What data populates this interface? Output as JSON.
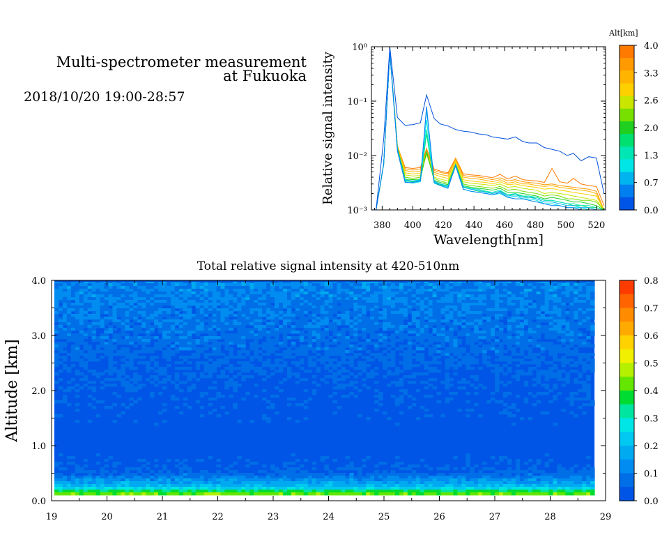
{
  "header": {
    "title_line1": "Multi-spectrometer measurement",
    "title_line2": "at Fukuoka",
    "date_range": "2018/10/20 19:00-28:57"
  },
  "chart_data": [
    {
      "type": "line",
      "xlabel": "Wavelength[nm]",
      "ylabel": "Relative signal intensity",
      "x_ticks": [
        "380",
        "400",
        "420",
        "440",
        "460",
        "480",
        "500",
        "520"
      ],
      "y_ticks": [
        "10⁰",
        "10⁻¹",
        "10⁻²",
        "10⁻³"
      ],
      "y_scale": "log",
      "xlim": [
        373,
        526
      ],
      "ylim": [
        0.001,
        1
      ],
      "grid": false,
      "colorbar": {
        "title": "Alt[km]",
        "ticks": [
          "4.0",
          "3.3",
          "2.6",
          "2.0",
          "1.3",
          "0.7",
          "0.0"
        ],
        "colors": [
          "#ff7a00",
          "#ff9a00",
          "#ffb400",
          "#ffd000",
          "#c8e600",
          "#78e000",
          "#20d020",
          "#00e070",
          "#00e6b4",
          "#00e6e6",
          "#00b4f0",
          "#0080f0",
          "#0055e6"
        ]
      },
      "x": [
        376,
        381,
        385,
        390,
        395,
        400,
        405,
        409,
        414,
        418,
        423,
        428,
        433,
        438,
        443,
        448,
        452,
        457,
        462,
        467,
        472,
        476,
        481,
        486,
        491,
        496,
        501,
        505,
        510,
        515,
        520,
        525
      ],
      "series": [
        {
          "alt": 0.0,
          "color": "#0050dc",
          "values": [
            0.001,
            0.02,
            1.0,
            0.05,
            0.036,
            0.037,
            0.04,
            0.13,
            0.048,
            0.038,
            0.035,
            0.03,
            0.028,
            0.027,
            0.025,
            0.024,
            0.022,
            0.021,
            0.02,
            0.022,
            0.018,
            0.017,
            0.017,
            0.014,
            0.013,
            0.012,
            0.01,
            0.011,
            0.008,
            0.0095,
            0.009,
            0.002
          ]
        },
        {
          "alt": 0.3,
          "color": "#0080f0",
          "values": [
            0.001,
            0.007,
            0.8,
            0.012,
            0.0032,
            0.0032,
            0.0034,
            0.08,
            0.0032,
            0.0028,
            0.0025,
            0.0065,
            0.0024,
            0.0022,
            0.0021,
            0.002,
            0.0019,
            0.0021,
            0.0017,
            0.0016,
            0.0016,
            0.0015,
            0.0014,
            0.0013,
            0.0012,
            0.0012,
            0.0011,
            0.0011,
            0.001,
            0.001,
            0.001,
            0.001
          ]
        },
        {
          "alt": 0.7,
          "color": "#00b4f0",
          "values": [
            0.001,
            0.007,
            0.8,
            0.013,
            0.0035,
            0.0034,
            0.0036,
            0.07,
            0.0034,
            0.003,
            0.0027,
            0.0068,
            0.0026,
            0.0024,
            0.0023,
            0.0021,
            0.002,
            0.0022,
            0.0018,
            0.0019,
            0.0017,
            0.0017,
            0.0016,
            0.0014,
            0.0014,
            0.0013,
            0.0012,
            0.0012,
            0.0011,
            0.0011,
            0.001,
            0.001
          ]
        },
        {
          "alt": 1.0,
          "color": "#00e6e6",
          "values": [
            0.001,
            0.007,
            0.8,
            0.013,
            0.0033,
            0.0031,
            0.0033,
            0.045,
            0.0031,
            0.0028,
            0.0026,
            0.0064,
            0.0024,
            0.0022,
            0.0021,
            0.002,
            0.0019,
            0.002,
            0.0017,
            0.0018,
            0.0016,
            0.0016,
            0.0015,
            0.0013,
            0.0013,
            0.0012,
            0.0011,
            0.0011,
            0.0011,
            0.001,
            0.001,
            0.001
          ]
        },
        {
          "alt": 1.3,
          "color": "#00e6b4",
          "values": [
            0.001,
            0.007,
            0.8,
            0.013,
            0.0036,
            0.0034,
            0.0035,
            0.03,
            0.0033,
            0.003,
            0.0028,
            0.0066,
            0.0027,
            0.0025,
            0.0024,
            0.0022,
            0.0021,
            0.0023,
            0.0019,
            0.002,
            0.0018,
            0.0018,
            0.0017,
            0.0015,
            0.0015,
            0.0014,
            0.0013,
            0.0013,
            0.0012,
            0.0012,
            0.0011,
            0.001
          ]
        },
        {
          "alt": 1.6,
          "color": "#00e070",
          "values": [
            0.001,
            0.007,
            0.8,
            0.013,
            0.0034,
            0.0033,
            0.0034,
            0.025,
            0.0033,
            0.0029,
            0.0027,
            0.0066,
            0.0026,
            0.0024,
            0.0022,
            0.0022,
            0.002,
            0.0022,
            0.0019,
            0.0019,
            0.0018,
            0.0017,
            0.0017,
            0.0015,
            0.0015,
            0.0014,
            0.0013,
            0.0012,
            0.0012,
            0.0011,
            0.0011,
            0.001
          ]
        },
        {
          "alt": 2.0,
          "color": "#20d020",
          "values": [
            0.001,
            0.007,
            0.8,
            0.014,
            0.0037,
            0.0036,
            0.0037,
            0.012,
            0.0035,
            0.0032,
            0.0029,
            0.0068,
            0.0028,
            0.0026,
            0.0025,
            0.0024,
            0.0023,
            0.0025,
            0.0021,
            0.0021,
            0.002,
            0.0019,
            0.0018,
            0.0016,
            0.0017,
            0.0016,
            0.0015,
            0.0014,
            0.0014,
            0.0013,
            0.0012,
            0.001
          ]
        },
        {
          "alt": 2.3,
          "color": "#78e000",
          "values": [
            0.001,
            0.007,
            0.8,
            0.014,
            0.004,
            0.0038,
            0.004,
            0.011,
            0.0038,
            0.0034,
            0.0031,
            0.007,
            0.003,
            0.0028,
            0.0027,
            0.0026,
            0.0025,
            0.0027,
            0.0023,
            0.0024,
            0.0022,
            0.0021,
            0.002,
            0.0018,
            0.0019,
            0.0018,
            0.0016,
            0.0016,
            0.0015,
            0.0015,
            0.0014,
            0.001
          ]
        },
        {
          "alt": 2.6,
          "color": "#c8e600",
          "values": [
            0.001,
            0.007,
            0.8,
            0.014,
            0.0044,
            0.0042,
            0.0043,
            0.0105,
            0.004,
            0.0037,
            0.0034,
            0.0072,
            0.0033,
            0.0031,
            0.003,
            0.0029,
            0.0028,
            0.003,
            0.0026,
            0.0027,
            0.0025,
            0.0024,
            0.0023,
            0.002,
            0.0021,
            0.002,
            0.0019,
            0.0018,
            0.0017,
            0.0016,
            0.0015,
            0.001
          ]
        },
        {
          "alt": 3.0,
          "color": "#ffd000",
          "values": [
            0.001,
            0.007,
            0.8,
            0.014,
            0.0048,
            0.0046,
            0.0047,
            0.011,
            0.0045,
            0.0041,
            0.0038,
            0.0078,
            0.0036,
            0.0034,
            0.0033,
            0.0032,
            0.003,
            0.0033,
            0.0029,
            0.003,
            0.0028,
            0.0027,
            0.0026,
            0.0024,
            0.0025,
            0.0023,
            0.0022,
            0.0021,
            0.002,
            0.0019,
            0.0018,
            0.001
          ]
        },
        {
          "alt": 3.3,
          "color": "#ffb400",
          "values": [
            0.001,
            0.007,
            0.8,
            0.015,
            0.0053,
            0.005,
            0.0052,
            0.012,
            0.0049,
            0.0045,
            0.0042,
            0.0083,
            0.004,
            0.0038,
            0.0037,
            0.0035,
            0.0033,
            0.0036,
            0.0031,
            0.0033,
            0.003,
            0.003,
            0.0028,
            0.0027,
            0.0028,
            0.0026,
            0.0025,
            0.0024,
            0.0023,
            0.0022,
            0.002,
            0.001
          ]
        },
        {
          "alt": 3.6,
          "color": "#ff9a00",
          "values": [
            0.001,
            0.007,
            0.8,
            0.015,
            0.0057,
            0.0054,
            0.0056,
            0.013,
            0.0053,
            0.0049,
            0.0046,
            0.0088,
            0.0043,
            0.0041,
            0.004,
            0.0038,
            0.0036,
            0.0039,
            0.0034,
            0.0036,
            0.0033,
            0.0032,
            0.0031,
            0.0029,
            0.003,
            0.0028,
            0.0027,
            0.0026,
            0.0025,
            0.0024,
            0.0022,
            0.001
          ]
        },
        {
          "alt": 4.0,
          "color": "#ff7a00",
          "values": [
            0.001,
            0.007,
            0.8,
            0.015,
            0.006,
            0.0058,
            0.006,
            0.0135,
            0.0056,
            0.0052,
            0.0048,
            0.009,
            0.0046,
            0.0044,
            0.0043,
            0.0041,
            0.0039,
            0.0045,
            0.0037,
            0.0042,
            0.0036,
            0.0035,
            0.0034,
            0.0032,
            0.0058,
            0.0033,
            0.0031,
            0.0038,
            0.003,
            0.0028,
            0.0027,
            0.0012
          ]
        }
      ]
    },
    {
      "type": "heatmap",
      "title": "Total relative signal intensity at 420-510nm",
      "xlabel": "",
      "ylabel": "Altitude [km]",
      "xlim": [
        19,
        29
      ],
      "ylim": [
        0,
        4
      ],
      "x_ticks": [
        "19",
        "20",
        "21",
        "22",
        "23",
        "24",
        "25",
        "26",
        "27",
        "28",
        "29"
      ],
      "y_ticks": [
        "0.0",
        "1.0",
        "2.0",
        "3.0",
        "4.0"
      ],
      "grid": false,
      "colorbar": {
        "ticks": [
          "0.8",
          "0.7",
          "0.6",
          "0.5",
          "0.4",
          "0.3",
          "0.2",
          "0.1",
          "0.0"
        ],
        "colors": [
          "#ff3c00",
          "#ff6400",
          "#ff8c00",
          "#ffaa00",
          "#ffd200",
          "#f0f000",
          "#b4f000",
          "#64e600",
          "#00dc32",
          "#00e6a0",
          "#00e6e6",
          "#00c8f0",
          "#00aaf0",
          "#008cf0",
          "#006ee6",
          "#0055e6"
        ]
      },
      "profile": [
        {
          "alt": 0.15,
          "value": 0.42
        },
        {
          "alt": 0.2,
          "value": 0.3
        },
        {
          "alt": 0.25,
          "value": 0.2
        },
        {
          "alt": 0.35,
          "value": 0.15
        },
        {
          "alt": 0.5,
          "value": 0.05
        },
        {
          "alt": 1.0,
          "value": 0.02
        },
        {
          "alt": 2.0,
          "value": 0.03
        },
        {
          "alt": 2.5,
          "value": 0.05
        },
        {
          "alt": 3.0,
          "value": 0.07
        },
        {
          "alt": 3.5,
          "value": 0.09
        },
        {
          "alt": 4.0,
          "value": 0.11
        }
      ],
      "data_xlim": [
        19.05,
        28.8
      ],
      "data_ylim": [
        0.13,
        4.0
      ]
    }
  ]
}
